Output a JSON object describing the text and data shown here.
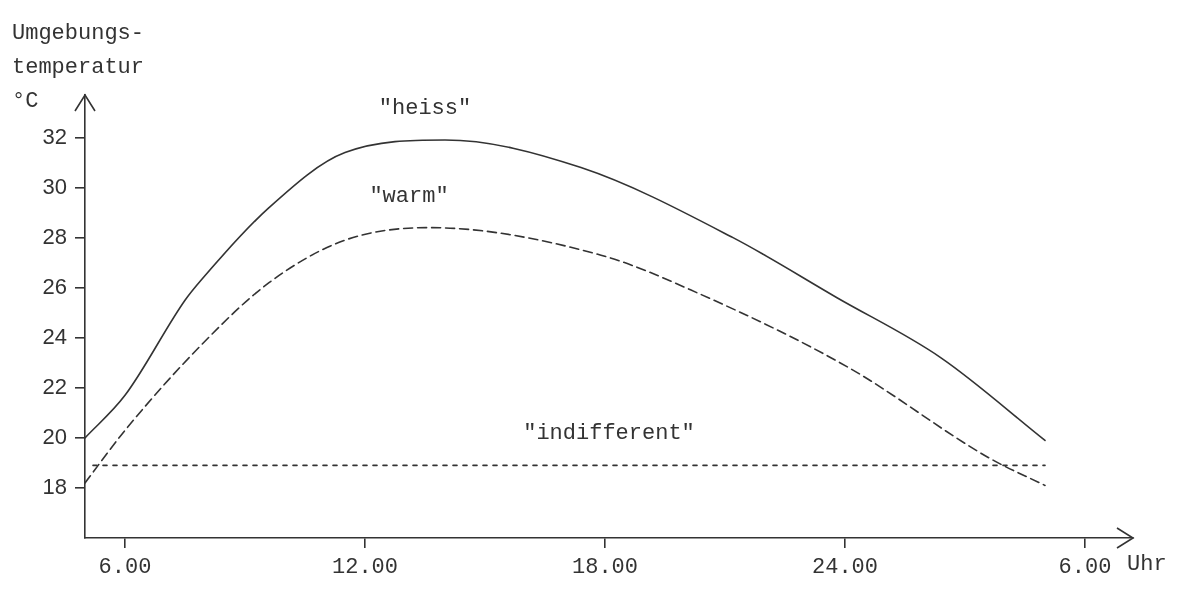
{
  "chart_data": {
    "type": "line",
    "ylabel": "Umgebungs-\ntemperatur\n°C",
    "xlabel": "Uhr",
    "marker": "none",
    "xlim": [
      "--01-01T05:00",
      "--01-02T07:12"
    ],
    "xticks": [
      {
        "value": "--01-01T06:00",
        "label": "6.00"
      },
      {
        "value": "--01-01T12:00",
        "label": "12.00"
      },
      {
        "value": "--01-01T18:00",
        "label": "18.00"
      },
      {
        "value": "--01-02T00:00",
        "label": "24.00"
      },
      {
        "value": "--01-02T06:00",
        "label": "6.00"
      }
    ],
    "ylim": [
      16,
      33.7
    ],
    "yticks": [
      18,
      20,
      22,
      24,
      26,
      28,
      30,
      32
    ],
    "series": [
      {
        "name": "\"heiss\"",
        "color": "#333333",
        "line_style": "solid",
        "x": [
          "--01-01T05:00",
          "--01-01T06:00",
          "--01-01T07:30",
          "--01-01T07:54",
          "--01-01T09:36",
          "--01-01T11:30",
          "--01-01T14:00",
          "--01-01T17:24",
          "--01-01T21:12",
          "--01-01T23:48",
          "--01-02T02:24",
          "--01-02T05:00"
        ],
        "values": [
          20,
          21.7,
          25.5,
          26.3,
          29.2,
          31.4,
          31.9,
          30.8,
          28,
          25.6,
          23.2,
          19.9
        ]
      },
      {
        "name": "\"warm\"",
        "color": "#333333",
        "line_style": "dashed",
        "x": [
          "--01-01T05:00",
          "--01-01T06:00",
          "--01-01T07:54",
          "--01-01T09:36",
          "--01-01T11:30",
          "--01-01T13:36",
          "--01-01T17:54",
          "--01-01T20:18",
          "--01-02T00:06",
          "--01-02T03:36",
          "--01-02T05:00"
        ],
        "values": [
          18.2,
          20.3,
          23.7,
          26.2,
          27.9,
          28.4,
          27.3,
          25.8,
          22.8,
          19.2,
          18.1
        ]
      },
      {
        "name": "\"indifferent\"",
        "color": "#333333",
        "line_style": "dotted",
        "x": [
          "--01-01T05:12",
          "--01-02T05:00"
        ],
        "values": [
          18.9,
          18.9
        ]
      }
    ]
  }
}
